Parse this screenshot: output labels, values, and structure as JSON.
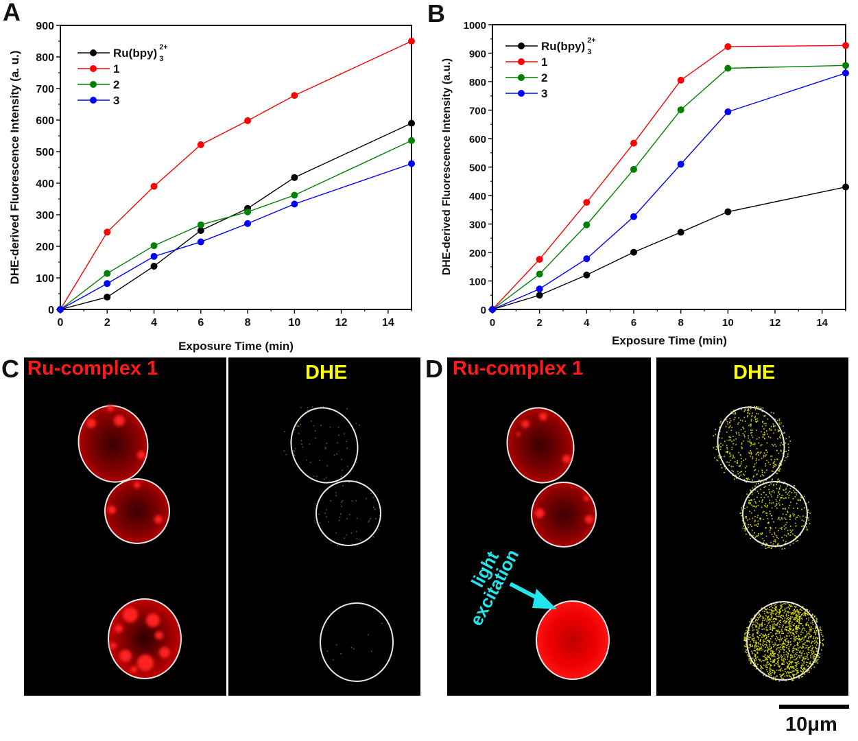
{
  "panels": {
    "A": "A",
    "B": "B",
    "C": "C",
    "D": "D"
  },
  "chart_data": [
    {
      "id": "A",
      "type": "line",
      "title": "",
      "xlabel": "Exposure Time (min)",
      "ylabel": "DHE-derived Fluorescence Intensity (a. u.)",
      "xlim": [
        0,
        15
      ],
      "ylim": [
        0,
        900
      ],
      "xticks": [
        0,
        2,
        4,
        6,
        8,
        10,
        12,
        14
      ],
      "yticks": [
        0,
        100,
        200,
        300,
        400,
        500,
        600,
        700,
        800,
        900
      ],
      "grid": false,
      "legend_position": "top-left",
      "x": [
        0,
        2,
        4,
        6,
        8,
        10,
        15
      ],
      "series": [
        {
          "name": "Ru(bpy)3 2+",
          "name_main": "Ru(bpy)",
          "name_sub": "3",
          "name_sup": "2+",
          "color": "#000000",
          "values": [
            0,
            39,
            137,
            250,
            320,
            418,
            590
          ]
        },
        {
          "name": "1",
          "name_main": "1",
          "name_sub": "",
          "name_sup": "",
          "color": "#ff0000",
          "values": [
            0,
            245,
            390,
            522,
            598,
            678,
            850
          ]
        },
        {
          "name": "2",
          "name_main": "2",
          "name_sub": "",
          "name_sup": "",
          "color": "#008000",
          "values": [
            0,
            114,
            202,
            268,
            309,
            362,
            535
          ]
        },
        {
          "name": "3",
          "name_main": "3",
          "name_sub": "",
          "name_sup": "",
          "color": "#0000ff",
          "values": [
            0,
            82,
            168,
            214,
            272,
            334,
            462
          ]
        }
      ]
    },
    {
      "id": "B",
      "type": "line",
      "title": "",
      "xlabel": "Exposure Time (min)",
      "ylabel": "DHE-derived Fluorescence Intensity (a.u.)",
      "xlim": [
        0,
        15
      ],
      "ylim": [
        0,
        1000
      ],
      "xticks": [
        0,
        2,
        4,
        6,
        8,
        10,
        12,
        14
      ],
      "yticks": [
        0,
        100,
        200,
        300,
        400,
        500,
        600,
        700,
        800,
        900,
        1000
      ],
      "grid": false,
      "legend_position": "top-left",
      "x": [
        0,
        2,
        4,
        6,
        8,
        10,
        15
      ],
      "series": [
        {
          "name": "Ru(bpy)3 2+",
          "name_main": "Ru(bpy)",
          "name_sub": "3",
          "name_sup": "2+",
          "color": "#000000",
          "values": [
            0,
            50,
            121,
            201,
            271,
            343,
            430
          ]
        },
        {
          "name": "1",
          "name_main": "1",
          "name_sub": "",
          "name_sup": "",
          "color": "#ff0000",
          "values": [
            0,
            176,
            376,
            584,
            805,
            923,
            927
          ]
        },
        {
          "name": "2",
          "name_main": "2",
          "name_sub": "",
          "name_sup": "",
          "color": "#008000",
          "values": [
            0,
            124,
            297,
            492,
            701,
            847,
            857
          ]
        },
        {
          "name": "3",
          "name_main": "3",
          "name_sub": "",
          "name_sup": "",
          "color": "#0000ff",
          "values": [
            0,
            72,
            178,
            326,
            510,
            694,
            830
          ]
        }
      ]
    }
  ],
  "micrographs": {
    "C": {
      "left_label": "Ru-complex 1",
      "left_label_color": "#ff1a1a",
      "right_label": "DHE",
      "right_label_color": "#ffff00"
    },
    "D": {
      "left_label": "Ru-complex 1",
      "left_label_color": "#ff1a1a",
      "right_label": "DHE",
      "right_label_color": "#ffff00",
      "annotation_line1": "light",
      "annotation_line2": "excitation",
      "annotation_color": "#22e5ee"
    }
  },
  "scale_bar": {
    "label": "10μm"
  }
}
